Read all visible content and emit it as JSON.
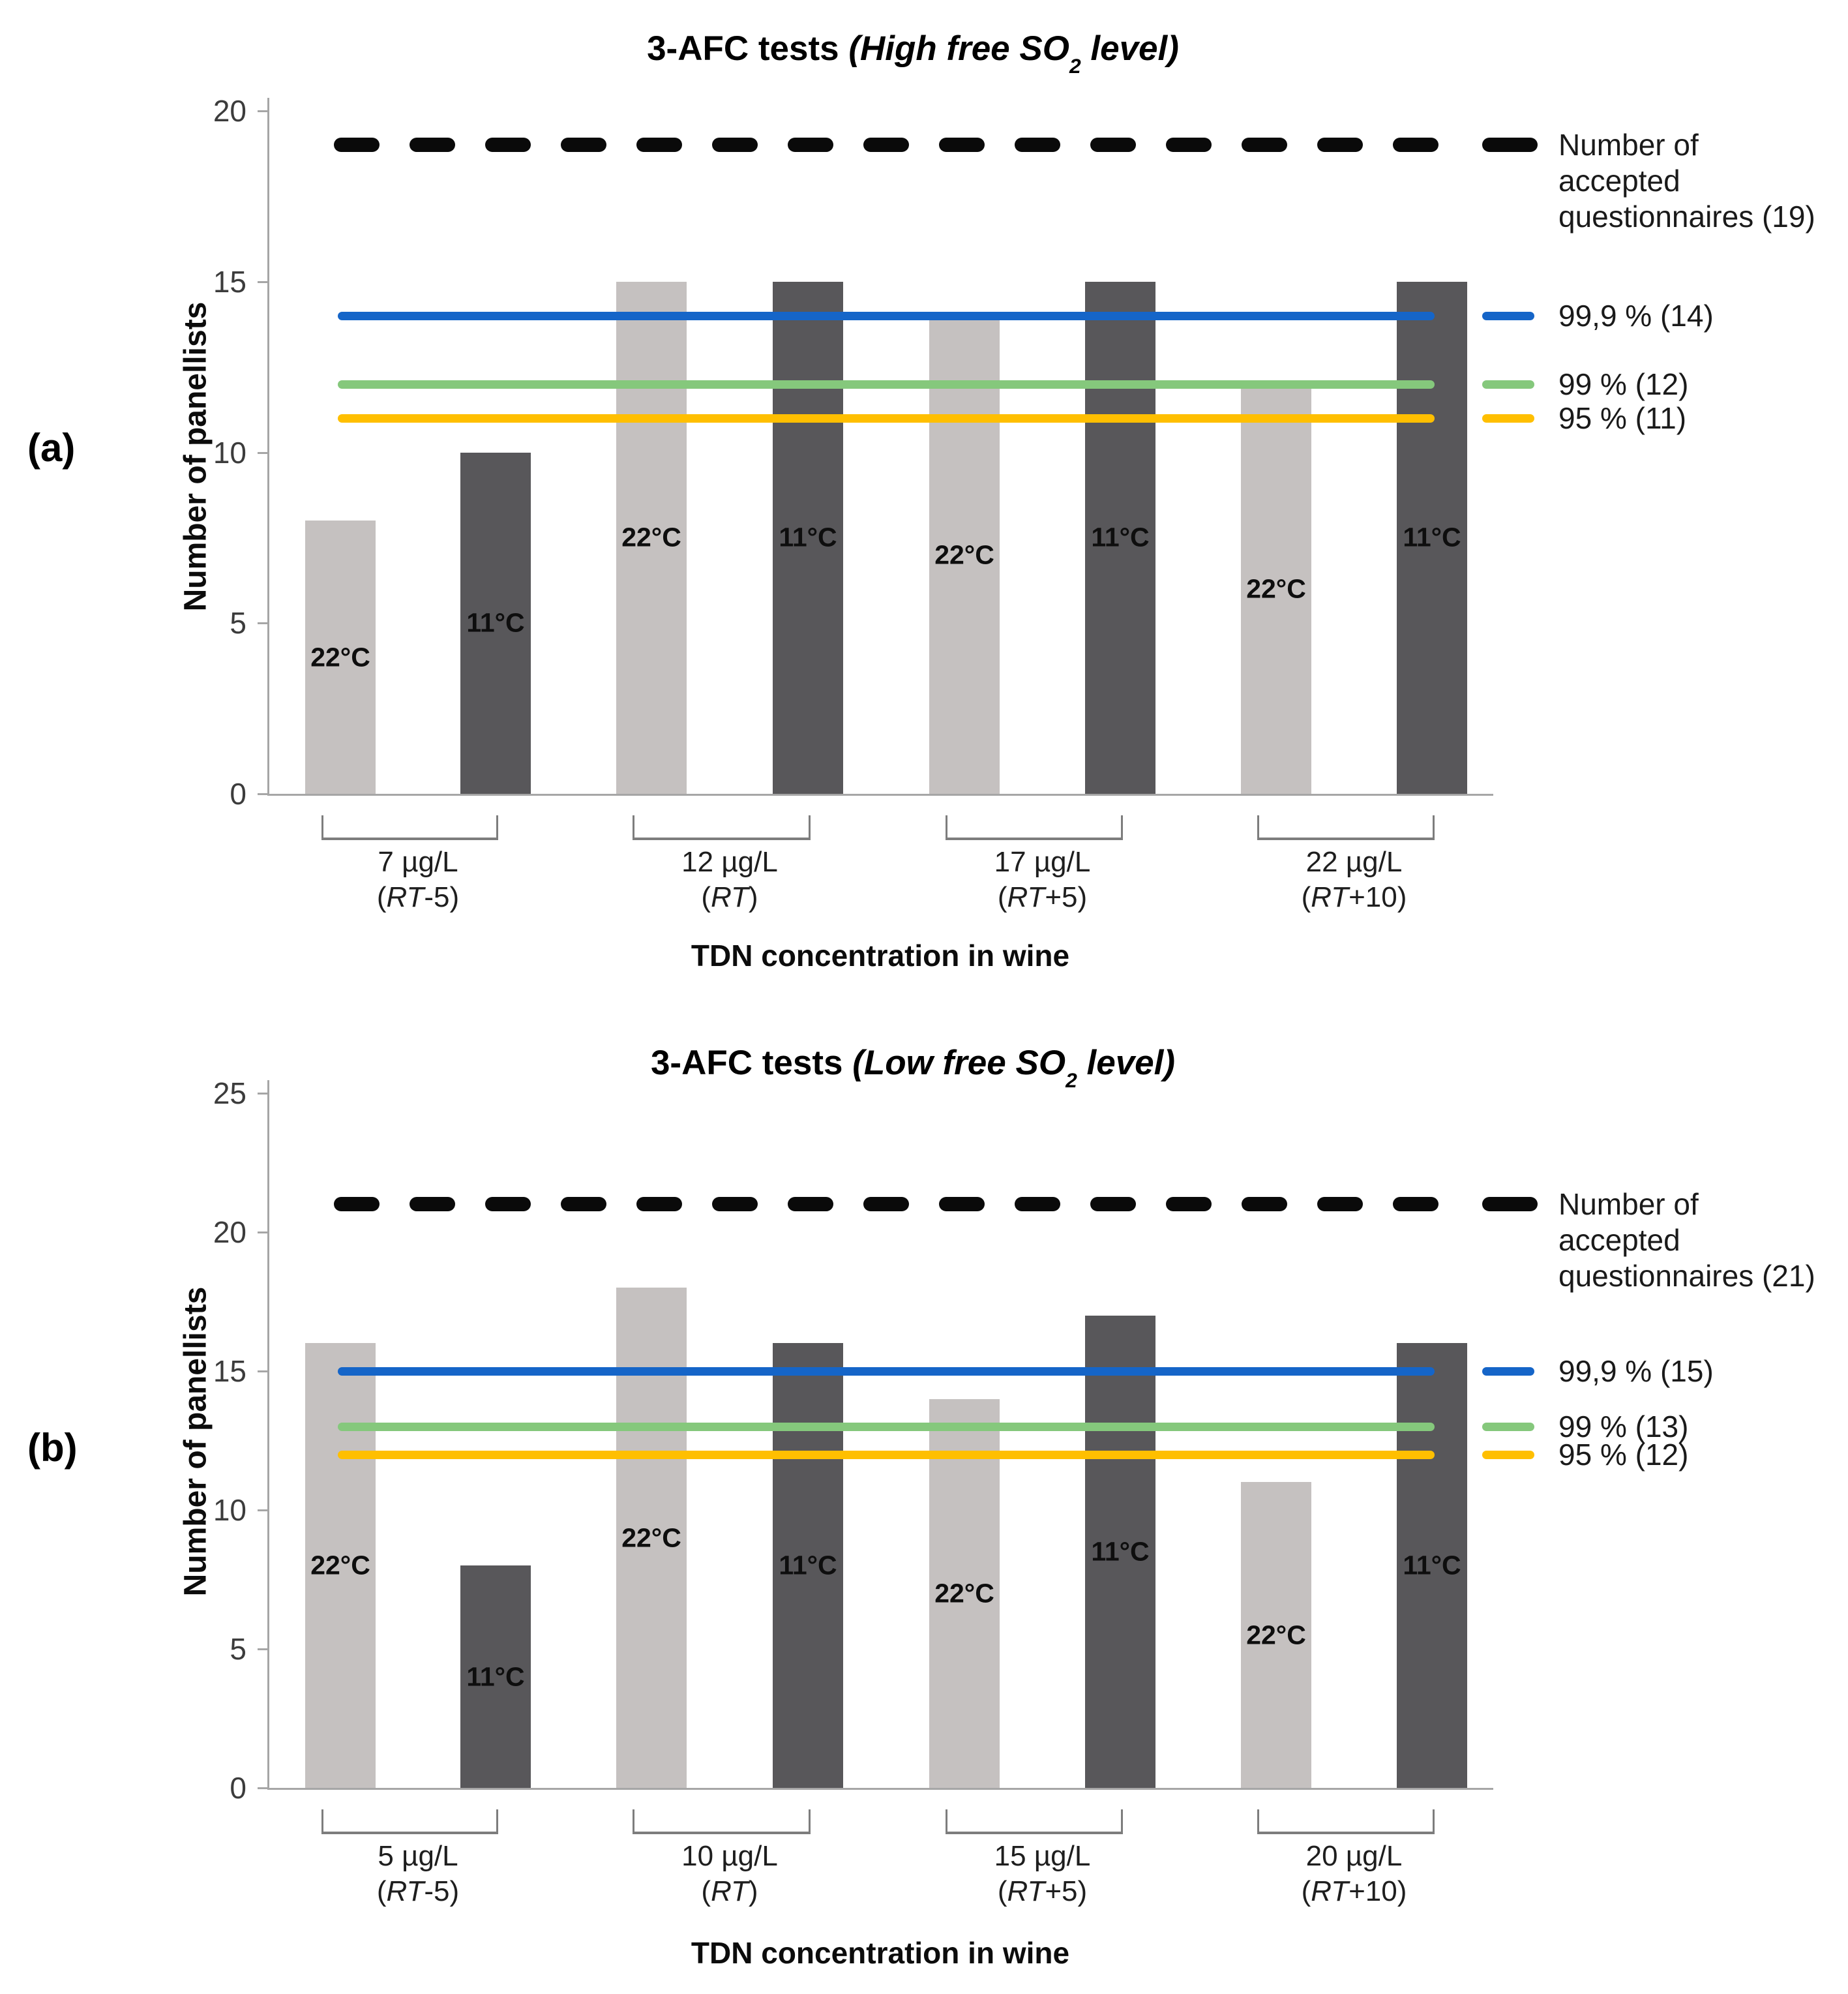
{
  "panels": [
    {
      "corner_label": "(a)",
      "title": {
        "prefix": "3-AFC tests ",
        "italic_before_sub": "(High free SO",
        "subscript": "2",
        "italic_after_sub": " level)"
      },
      "y_axis": {
        "label": "Number of panellists",
        "ticks": [
          0,
          5,
          10,
          15,
          20
        ],
        "max": 20
      },
      "x_axis": {
        "title": "TDN concentration in wine",
        "groups": [
          {
            "concentration": "7 µg/L",
            "rt": "RT",
            "rt_suffix": "-5"
          },
          {
            "concentration": "12 µg/L",
            "rt": "RT",
            "rt_suffix": ""
          },
          {
            "concentration": "17 µg/L",
            "rt": "RT",
            "rt_suffix": "+5"
          },
          {
            "concentration": "22 µg/L",
            "rt": "RT",
            "rt_suffix": "+10"
          }
        ]
      },
      "series": [
        {
          "name": "22°C",
          "color": "#c5c1c0",
          "values": [
            8,
            15,
            14,
            12
          ]
        },
        {
          "name": "11°C",
          "color": "#58575a",
          "values": [
            10,
            15,
            15,
            15
          ]
        }
      ],
      "ref_lines": [
        {
          "style": "dashed",
          "value": 19,
          "color": "#0a0a0a",
          "legend_lines": [
            "Number of",
            "accepted",
            "questionnaires (19)"
          ]
        },
        {
          "style": "solid",
          "value": 14,
          "color": "#1565c8",
          "legend": "99,9 % (14)"
        },
        {
          "style": "solid",
          "value": 12,
          "color": "#85c87c",
          "legend": "99 % (12)"
        },
        {
          "style": "solid",
          "value": 11,
          "color": "#ffbf00",
          "legend": "95 % (11)"
        }
      ]
    },
    {
      "corner_label": "(b)",
      "title": {
        "prefix": "3-AFC tests ",
        "italic_before_sub": "(Low free SO",
        "subscript": "2",
        "italic_after_sub": " level)"
      },
      "y_axis": {
        "label": "Number of panellists",
        "ticks": [
          0,
          5,
          10,
          15,
          20,
          25
        ],
        "max": 25
      },
      "x_axis": {
        "title": "TDN concentration in wine",
        "groups": [
          {
            "concentration": "5 µg/L",
            "rt": "RT",
            "rt_suffix": "-5"
          },
          {
            "concentration": "10 µg/L",
            "rt": "RT",
            "rt_suffix": ""
          },
          {
            "concentration": "15 µg/L",
            "rt": "RT",
            "rt_suffix": "+5"
          },
          {
            "concentration": "20 µg/L",
            "rt": "RT",
            "rt_suffix": "+10"
          }
        ]
      },
      "series": [
        {
          "name": "22°C",
          "color": "#c5c1c0",
          "values": [
            16,
            18,
            14,
            11
          ]
        },
        {
          "name": "11°C",
          "color": "#58575a",
          "values": [
            8,
            16,
            17,
            16
          ]
        }
      ],
      "ref_lines": [
        {
          "style": "dashed",
          "value": 21,
          "color": "#0a0a0a",
          "legend_lines": [
            "Number of",
            "accepted",
            "questionnaires (21)"
          ]
        },
        {
          "style": "solid",
          "value": 15,
          "color": "#1565c8",
          "legend": "99,9 % (15)"
        },
        {
          "style": "solid",
          "value": 13,
          "color": "#85c87c",
          "legend": "99 % (13)"
        },
        {
          "style": "solid",
          "value": 12,
          "color": "#ffbf00",
          "legend": "95 % (12)"
        }
      ]
    }
  ],
  "chart_data": [
    {
      "type": "bar",
      "panel": "(a)",
      "title": "3-AFC tests (High free SO2 level)",
      "categories": [
        "7 µg/L (RT-5)",
        "12 µg/L (RT)",
        "17 µg/L (RT+5)",
        "22 µg/L (RT+10)"
      ],
      "series": [
        {
          "name": "22°C",
          "values": [
            8,
            15,
            14,
            12
          ]
        },
        {
          "name": "11°C",
          "values": [
            10,
            15,
            15,
            15
          ]
        }
      ],
      "ref_lines": [
        {
          "label": "Number of accepted questionnaires (19)",
          "value": 19,
          "style": "dashed",
          "color": "#0a0a0a"
        },
        {
          "label": "99,9 % (14)",
          "value": 14,
          "style": "solid",
          "color": "#1565c8"
        },
        {
          "label": "99 % (12)",
          "value": 12,
          "style": "solid",
          "color": "#85c87c"
        },
        {
          "label": "95 % (11)",
          "value": 11,
          "style": "solid",
          "color": "#ffbf00"
        }
      ],
      "xlabel": "TDN concentration in wine",
      "ylabel": "Number of panellists",
      "ylim": [
        0,
        20
      ],
      "grid": false,
      "legend_position": "right"
    },
    {
      "type": "bar",
      "panel": "(b)",
      "title": "3-AFC tests (Low free SO2 level)",
      "categories": [
        "5 µg/L (RT-5)",
        "10 µg/L (RT)",
        "15 µg/L (RT+5)",
        "20 µg/L (RT+10)"
      ],
      "series": [
        {
          "name": "22°C",
          "values": [
            16,
            18,
            14,
            11
          ]
        },
        {
          "name": "11°C",
          "values": [
            8,
            16,
            17,
            16
          ]
        }
      ],
      "ref_lines": [
        {
          "label": "Number of accepted questionnaires (21)",
          "value": 21,
          "style": "dashed",
          "color": "#0a0a0a"
        },
        {
          "label": "99,9 % (15)",
          "value": 15,
          "style": "solid",
          "color": "#1565c8"
        },
        {
          "label": "99 % (13)",
          "value": 13,
          "style": "solid",
          "color": "#85c87c"
        },
        {
          "label": "95 % (12)",
          "value": 12,
          "style": "solid",
          "color": "#ffbf00"
        }
      ],
      "xlabel": "TDN concentration in wine",
      "ylabel": "Number of panellists",
      "ylim": [
        0,
        25
      ],
      "grid": false,
      "legend_position": "right"
    }
  ]
}
